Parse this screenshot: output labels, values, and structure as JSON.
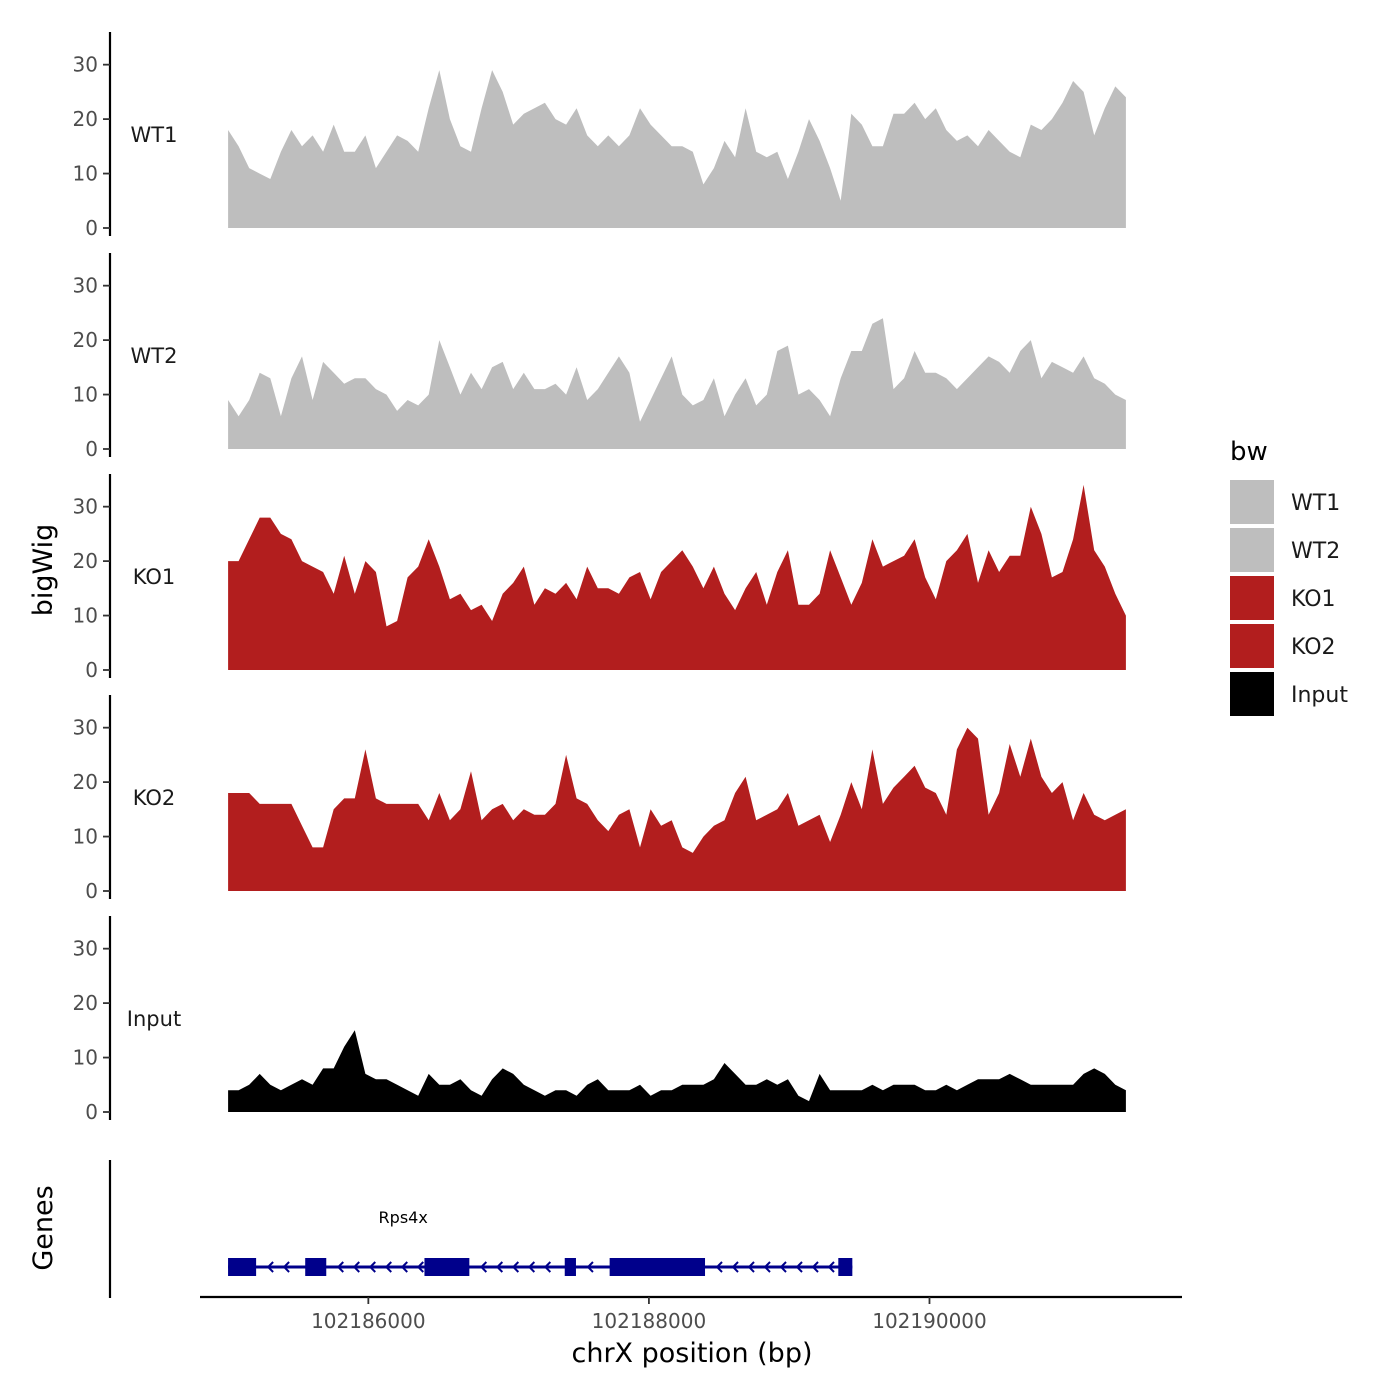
{
  "chart_data": {
    "type": "area",
    "subtype": "genome-track",
    "xlabel": "chrX position (bp)",
    "ylabel": "bigWig",
    "genes_label": "Genes",
    "xlim": [
      102184800,
      102191800
    ],
    "x_ticks": [
      102186000,
      102188000,
      102190000
    ],
    "x_tick_labels": [
      "102186000",
      "102188000",
      "102190000"
    ],
    "ylim": [
      0,
      36
    ],
    "y_ticks": [
      0,
      10,
      20,
      30
    ],
    "y_tick_labels": [
      "0",
      "10",
      "20",
      "30"
    ],
    "signal_start": 102185000,
    "signal_end": 102191400,
    "legend": {
      "title": "bw",
      "position": "right",
      "entries": [
        {
          "label": "WT1",
          "color": "#bebebe"
        },
        {
          "label": "WT2",
          "color": "#bebebe"
        },
        {
          "label": "KO1",
          "color": "#b21e1e"
        },
        {
          "label": "KO2",
          "color": "#b21e1e"
        },
        {
          "label": "Input",
          "color": "#000000"
        }
      ]
    },
    "tracks": [
      {
        "name": "WT1",
        "color": "#bebebe",
        "values": [
          18,
          15,
          11,
          10,
          9,
          14,
          18,
          15,
          17,
          14,
          19,
          14,
          14,
          17,
          11,
          14,
          17,
          16,
          14,
          22,
          29,
          20,
          15,
          14,
          22,
          29,
          25,
          19,
          21,
          22,
          23,
          20,
          19,
          22,
          17,
          15,
          17,
          15,
          17,
          22,
          19,
          17,
          15,
          15,
          14,
          8,
          11,
          16,
          13,
          22,
          14,
          13,
          14,
          9,
          14,
          20,
          16,
          11,
          5,
          21,
          19,
          15,
          15,
          21,
          21,
          23,
          20,
          22,
          18,
          16,
          17,
          15,
          18,
          16,
          14,
          13,
          19,
          18,
          20,
          23,
          27,
          25,
          17,
          22,
          26,
          24
        ]
      },
      {
        "name": "WT2",
        "color": "#bebebe",
        "values": [
          9,
          6,
          9,
          14,
          13,
          6,
          13,
          17,
          9,
          16,
          14,
          12,
          13,
          13,
          11,
          10,
          7,
          9,
          8,
          10,
          20,
          15,
          10,
          14,
          11,
          15,
          16,
          11,
          14,
          11,
          11,
          12,
          10,
          15,
          9,
          11,
          14,
          17,
          14,
          5,
          9,
          13,
          17,
          10,
          8,
          9,
          13,
          6,
          10,
          13,
          8,
          10,
          18,
          19,
          10,
          11,
          9,
          6,
          13,
          18,
          18,
          23,
          24,
          11,
          13,
          18,
          14,
          14,
          13,
          11,
          13,
          15,
          17,
          16,
          14,
          18,
          20,
          13,
          16,
          15,
          14,
          17,
          13,
          12,
          10,
          9
        ]
      },
      {
        "name": "KO1",
        "color": "#b21e1e",
        "values": [
          20,
          20,
          24,
          28,
          28,
          25,
          24,
          20,
          19,
          18,
          14,
          21,
          14,
          20,
          18,
          8,
          9,
          17,
          19,
          24,
          19,
          13,
          14,
          11,
          12,
          9,
          14,
          16,
          19,
          12,
          15,
          14,
          16,
          13,
          19,
          15,
          15,
          14,
          17,
          18,
          13,
          18,
          20,
          22,
          19,
          15,
          19,
          14,
          11,
          15,
          18,
          12,
          18,
          22,
          12,
          12,
          14,
          22,
          17,
          12,
          16,
          24,
          19,
          20,
          21,
          24,
          17,
          13,
          20,
          22,
          25,
          16,
          22,
          18,
          21,
          21,
          30,
          25,
          17,
          18,
          24,
          34,
          22,
          19,
          14,
          10
        ]
      },
      {
        "name": "KO2",
        "color": "#b21e1e",
        "values": [
          18,
          18,
          18,
          16,
          16,
          16,
          16,
          12,
          8,
          8,
          15,
          17,
          17,
          26,
          17,
          16,
          16,
          16,
          16,
          13,
          18,
          13,
          15,
          22,
          13,
          15,
          16,
          13,
          15,
          14,
          14,
          16,
          25,
          17,
          16,
          13,
          11,
          14,
          15,
          8,
          15,
          12,
          13,
          8,
          7,
          10,
          12,
          13,
          18,
          21,
          13,
          14,
          15,
          18,
          12,
          13,
          14,
          9,
          14,
          20,
          15,
          26,
          16,
          19,
          21,
          23,
          19,
          18,
          14,
          26,
          30,
          28,
          14,
          18,
          27,
          21,
          28,
          21,
          18,
          20,
          13,
          18,
          14,
          13,
          14,
          15
        ]
      },
      {
        "name": "Input",
        "color": "#000000",
        "values": [
          4,
          4,
          5,
          7,
          5,
          4,
          5,
          6,
          5,
          8,
          8,
          12,
          15,
          7,
          6,
          6,
          5,
          4,
          3,
          7,
          5,
          5,
          6,
          4,
          3,
          6,
          8,
          7,
          5,
          4,
          3,
          4,
          4,
          3,
          5,
          6,
          4,
          4,
          4,
          5,
          3,
          4,
          4,
          5,
          5,
          5,
          6,
          9,
          7,
          5,
          5,
          6,
          5,
          6,
          3,
          2,
          7,
          4,
          4,
          4,
          4,
          5,
          4,
          5,
          5,
          5,
          4,
          4,
          5,
          4,
          5,
          6,
          6,
          6,
          7,
          6,
          5,
          5,
          5,
          5,
          5,
          7,
          8,
          7,
          5,
          4
        ]
      }
    ],
    "gene": {
      "name": "Rps4x",
      "start": 102185000,
      "end": 102189450,
      "strand": "-",
      "exons": [
        [
          102185000,
          102185200
        ],
        [
          102185550,
          102185700
        ],
        [
          102186400,
          102186720
        ],
        [
          102187400,
          102187480
        ],
        [
          102187720,
          102188400
        ],
        [
          102189350,
          102189450
        ]
      ],
      "color": "#00008b"
    }
  }
}
